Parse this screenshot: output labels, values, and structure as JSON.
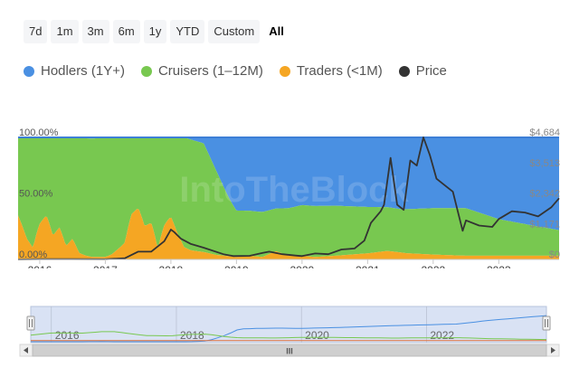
{
  "range_buttons": [
    {
      "label": "7d",
      "active": false
    },
    {
      "label": "1m",
      "active": false
    },
    {
      "label": "3m",
      "active": false
    },
    {
      "label": "6m",
      "active": false
    },
    {
      "label": "1y",
      "active": false
    },
    {
      "label": "YTD",
      "active": false
    },
    {
      "label": "Custom",
      "active": false
    },
    {
      "label": "All",
      "active": true
    }
  ],
  "legend": [
    {
      "label": "Hodlers (1Y+)",
      "color": "#4a90e2"
    },
    {
      "label": "Cruisers (1–12M)",
      "color": "#78c850"
    },
    {
      "label": "Traders (<1M)",
      "color": "#f5a623"
    },
    {
      "label": "Price",
      "color": "#333333"
    }
  ],
  "watermark": "IntoTheBlock",
  "navigator": {
    "year_labels": [
      "2016",
      "2018",
      "2020",
      "2022"
    ],
    "handle_glyph": "III"
  },
  "chart_data": {
    "type": "area",
    "stacking": "percent",
    "x_tick_labels": [
      "2016",
      "2017",
      "2018",
      "2019",
      "2020",
      "2021",
      "2022",
      "2023"
    ],
    "x_range": [
      2015.67,
      2023.92
    ],
    "y_left_ticks": [
      "100.00%",
      "50.00%",
      "0.00%"
    ],
    "y_left_range": [
      0,
      100
    ],
    "y_right_ticks": [
      "$4,684",
      "$3,513",
      "$2,342",
      "$1,171",
      "$0"
    ],
    "y_right_range": [
      0,
      4684
    ],
    "grid": false,
    "series": [
      {
        "name": "Traders (<1M)",
        "color": "#f5a623",
        "x": [
          2015.67,
          2015.8,
          2015.9,
          2016.0,
          2016.1,
          2016.2,
          2016.3,
          2016.4,
          2016.5,
          2016.6,
          2016.7,
          2016.8,
          2016.9,
          2017.0,
          2017.1,
          2017.2,
          2017.3,
          2017.4,
          2017.5,
          2017.6,
          2017.7,
          2017.8,
          2017.9,
          2018.0,
          2018.1,
          2018.2,
          2018.3,
          2018.5,
          2018.7,
          2019.0,
          2019.2,
          2019.4,
          2019.6,
          2019.8,
          2020.0,
          2020.2,
          2020.5,
          2021.0,
          2021.3,
          2021.6,
          2022.0,
          2022.5,
          2023.0,
          2023.5,
          2023.92
        ],
        "values": [
          36,
          15,
          8,
          35,
          48,
          20,
          30,
          10,
          17,
          5,
          3,
          2,
          2,
          2,
          4,
          8,
          12,
          40,
          44,
          22,
          25,
          5,
          22,
          33,
          18,
          8,
          6,
          5,
          3,
          2,
          3,
          2,
          7,
          3,
          3,
          2,
          3,
          5,
          7,
          5,
          4,
          3,
          3,
          3,
          3
        ]
      },
      {
        "name": "Cruisers (1–12M)",
        "color": "#78c850",
        "x": [
          2015.67,
          2016.0,
          2016.5,
          2016.8,
          2017.0,
          2017.5,
          2017.9,
          2018.2,
          2018.5,
          2018.8,
          2019.0,
          2019.3,
          2019.6,
          2020.0,
          2020.5,
          2021.0,
          2021.5,
          2022.0,
          2022.5,
          2023.0,
          2023.5,
          2023.92
        ],
        "values": [
          64,
          85,
          83,
          97,
          98,
          60,
          56,
          71,
          74,
          47,
          38,
          37,
          36,
          42,
          41,
          38,
          35,
          38,
          39,
          30,
          25,
          21
        ]
      },
      {
        "name": "Hodlers (1Y+)",
        "color": "#4a90e2",
        "x": [
          2015.67,
          2016.0,
          2016.5,
          2016.8,
          2017.0,
          2017.5,
          2017.9,
          2018.2,
          2018.5,
          2018.8,
          2019.0,
          2019.3,
          2019.6,
          2020.0,
          2020.5,
          2021.0,
          2021.5,
          2022.0,
          2022.5,
          2023.0,
          2023.5,
          2023.92
        ],
        "values": [
          0,
          0,
          0,
          1,
          0,
          0,
          0,
          0,
          4,
          33,
          60,
          61,
          60,
          56,
          56,
          57,
          58,
          58,
          58,
          67,
          72,
          76
        ]
      },
      {
        "name": "Price",
        "color": "#333333",
        "axis": "right",
        "x": [
          2015.67,
          2016.0,
          2016.5,
          2017.0,
          2017.3,
          2017.5,
          2017.7,
          2017.9,
          2018.0,
          2018.05,
          2018.15,
          2018.3,
          2018.5,
          2018.8,
          2018.95,
          2019.2,
          2019.4,
          2019.5,
          2019.7,
          2019.9,
          2020.0,
          2020.2,
          2020.4,
          2020.6,
          2020.8,
          2020.95,
          2021.05,
          2021.2,
          2021.25,
          2021.35,
          2021.45,
          2021.55,
          2021.65,
          2021.75,
          2021.85,
          2021.95,
          2022.05,
          2022.15,
          2022.3,
          2022.45,
          2022.5,
          2022.7,
          2022.9,
          2023.0,
          2023.2,
          2023.4,
          2023.6,
          2023.8,
          2023.92
        ],
        "values": [
          1,
          10,
          12,
          8,
          50,
          300,
          300,
          700,
          1150,
          1050,
          800,
          600,
          450,
          200,
          130,
          140,
          250,
          300,
          200,
          150,
          130,
          230,
          200,
          380,
          420,
          720,
          1400,
          1850,
          2100,
          3900,
          2100,
          1900,
          3800,
          3600,
          4684,
          4000,
          3100,
          2900,
          2600,
          1100,
          1500,
          1300,
          1250,
          1550,
          1850,
          1800,
          1650,
          2000,
          2350
        ]
      }
    ]
  }
}
